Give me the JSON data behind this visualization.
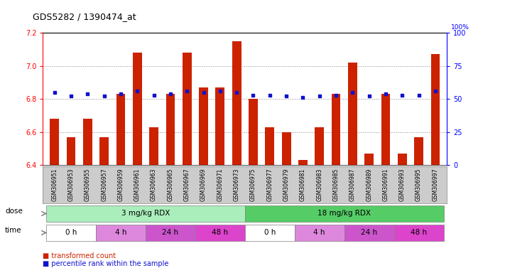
{
  "title": "GDS5282 / 1390474_at",
  "samples": [
    "GSM306951",
    "GSM306953",
    "GSM306955",
    "GSM306957",
    "GSM306959",
    "GSM306961",
    "GSM306963",
    "GSM306965",
    "GSM306967",
    "GSM306969",
    "GSM306971",
    "GSM306973",
    "GSM306975",
    "GSM306977",
    "GSM306979",
    "GSM306981",
    "GSM306983",
    "GSM306985",
    "GSM306987",
    "GSM306989",
    "GSM306991",
    "GSM306993",
    "GSM306995",
    "GSM306997"
  ],
  "bar_values": [
    6.68,
    6.57,
    6.68,
    6.57,
    6.83,
    7.08,
    6.63,
    6.83,
    7.08,
    6.87,
    6.87,
    7.15,
    6.8,
    6.63,
    6.6,
    6.43,
    6.63,
    6.83,
    7.02,
    6.47,
    6.83,
    6.47,
    6.57,
    7.07
  ],
  "percentile_values": [
    55,
    52,
    54,
    52,
    54,
    56,
    53,
    54,
    56,
    55,
    56,
    55,
    53,
    53,
    52,
    51,
    52,
    53,
    55,
    52,
    54,
    53,
    53,
    56
  ],
  "ylim": [
    6.4,
    7.2
  ],
  "ylim_right": [
    0,
    100
  ],
  "yticks_left": [
    6.4,
    6.6,
    6.8,
    7.0,
    7.2
  ],
  "yticks_right": [
    0,
    25,
    50,
    75,
    100
  ],
  "bar_color": "#cc2200",
  "percentile_color": "#1111cc",
  "bg_color": "#ffffff",
  "grid_color": "#888888",
  "label_bg_color": "#cccccc",
  "dose_colors": [
    "#aaeebb",
    "#55cc66"
  ],
  "dose_labels": [
    "3 mg/kg RDX",
    "18 mg/kg RDX"
  ],
  "dose_starts": [
    0,
    12
  ],
  "dose_ends": [
    12,
    24
  ],
  "time_labels": [
    "0 h",
    "4 h",
    "24 h",
    "48 h",
    "0 h",
    "4 h",
    "24 h",
    "48 h"
  ],
  "time_starts": [
    0,
    3,
    6,
    9,
    12,
    15,
    18,
    21
  ],
  "time_ends": [
    3,
    6,
    9,
    12,
    15,
    18,
    21,
    24
  ],
  "time_colors": [
    "#ffffff",
    "#dd88dd",
    "#cc55cc",
    "#dd44cc",
    "#ffffff",
    "#dd88dd",
    "#cc55cc",
    "#dd44cc"
  ],
  "dose_label_text": "dose",
  "time_label_text": "time",
  "legend_bar_label": "transformed count",
  "legend_perc_label": "percentile rank within the sample"
}
